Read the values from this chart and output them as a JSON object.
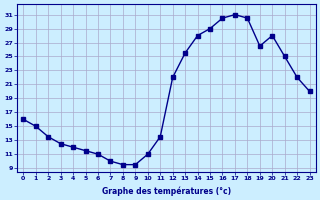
{
  "hours": [
    0,
    1,
    2,
    3,
    4,
    5,
    6,
    7,
    8,
    9,
    10,
    11,
    12,
    13,
    14,
    15,
    16,
    17,
    18,
    19,
    20,
    21,
    22,
    23
  ],
  "temperatures": [
    16,
    15,
    13.5,
    12.5,
    12,
    11.5,
    11,
    10,
    9.5,
    9.5,
    11,
    13.5,
    22,
    25.5,
    28,
    29,
    30.5,
    31,
    30.5,
    26.5,
    28,
    25,
    22,
    20
  ],
  "line_color": "#00008B",
  "marker_color": "#00008B",
  "bg_color": "#cceeff",
  "grid_color": "#aaaacc",
  "xlabel": "Graphe des températures (°c)",
  "ylabel_ticks": [
    9,
    11,
    13,
    15,
    17,
    19,
    21,
    23,
    25,
    27,
    29,
    31
  ],
  "xlim": [
    -0.5,
    23.5
  ],
  "ylim": [
    8.5,
    32.5
  ],
  "title_color": "#00008B",
  "xlabel_color": "#00008B"
}
